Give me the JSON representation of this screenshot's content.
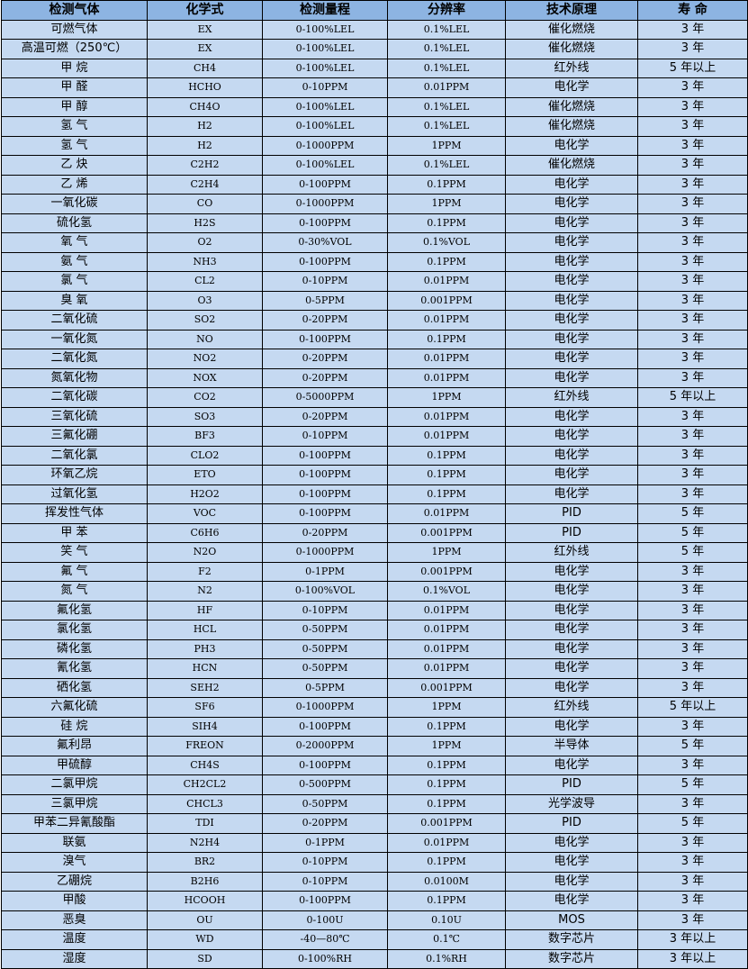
{
  "colors": {
    "header_bg": "#8db4e2",
    "row_bg": "#c5d9f1",
    "border": "#000000"
  },
  "headers": [
    "检测气体",
    "化学式",
    "检测量程",
    "分辨率",
    "技术原理",
    "寿 命"
  ],
  "rows": [
    [
      "可燃气体",
      "EX",
      "0-100%LEL",
      "0.1%LEL",
      "催化燃烧",
      "3 年"
    ],
    [
      "高温可燃（250℃）",
      "EX",
      "0-100%LEL",
      "0.1%LEL",
      "催化燃烧",
      "3 年"
    ],
    [
      "甲 烷",
      "CH4",
      "0-100%LEL",
      "0.1%LEL",
      "红外线",
      "5 年以上"
    ],
    [
      "甲 醛",
      "HCHO",
      "0-10PPM",
      "0.01PPM",
      "电化学",
      "3 年"
    ],
    [
      "甲 醇",
      "CH4O",
      "0-100%LEL",
      "0.1%LEL",
      "催化燃烧",
      "3 年"
    ],
    [
      "氢 气",
      "H2",
      "0-100%LEL",
      "0.1%LEL",
      "催化燃烧",
      "3 年"
    ],
    [
      "氢 气",
      "H2",
      "0-1000PPM",
      "1PPM",
      "电化学",
      "3 年"
    ],
    [
      "乙 炔",
      "C2H2",
      "0-100%LEL",
      "0.1%LEL",
      "催化燃烧",
      "3 年"
    ],
    [
      "乙 烯",
      "C2H4",
      "0-100PPM",
      "0.1PPM",
      "电化学",
      "3 年"
    ],
    [
      "一氧化碳",
      "CO",
      "0-1000PPM",
      "1PPM",
      "电化学",
      "3 年"
    ],
    [
      "硫化氢",
      "H2S",
      "0-100PPM",
      "0.1PPM",
      "电化学",
      "3 年"
    ],
    [
      "氧 气",
      "O2",
      "0-30%VOL",
      "0.1%VOL",
      "电化学",
      "3 年"
    ],
    [
      "氨 气",
      "NH3",
      "0-100PPM",
      "0.1PPM",
      "电化学",
      "3 年"
    ],
    [
      "氯 气",
      "CL2",
      "0-10PPM",
      "0.01PPM",
      "电化学",
      "3 年"
    ],
    [
      "臭 氧",
      "O3",
      "0-5PPM",
      "0.001PPM",
      "电化学",
      "3 年"
    ],
    [
      "二氧化硫",
      "SO2",
      "0-20PPM",
      "0.01PPM",
      "电化学",
      "3 年"
    ],
    [
      "一氧化氮",
      "NO",
      "0-100PPM",
      "0.1PPM",
      "电化学",
      "3 年"
    ],
    [
      "二氧化氮",
      "NO2",
      "0-20PPM",
      "0.01PPM",
      "电化学",
      "3 年"
    ],
    [
      "氮氧化物",
      "NOX",
      "0-20PPM",
      "0.01PPM",
      "电化学",
      "3 年"
    ],
    [
      "二氧化碳",
      "CO2",
      "0-5000PPM",
      "1PPM",
      "红外线",
      "5 年以上"
    ],
    [
      "三氧化硫",
      "SO3",
      "0-20PPM",
      "0.01PPM",
      "电化学",
      "3 年"
    ],
    [
      "三氟化硼",
      "BF3",
      "0-10PPM",
      "0.01PPM",
      "电化学",
      "3 年"
    ],
    [
      "二氧化氯",
      "CLO2",
      "0-100PPM",
      "0.1PPM",
      "电化学",
      "3 年"
    ],
    [
      "环氧乙烷",
      "ETO",
      "0-100PPM",
      "0.1PPM",
      "电化学",
      "3 年"
    ],
    [
      "过氧化氢",
      "H2O2",
      "0-100PPM",
      "0.1PPM",
      "电化学",
      "3 年"
    ],
    [
      "挥发性气体",
      "VOC",
      "0-100PPM",
      "0.01PPM",
      "PID",
      "5 年"
    ],
    [
      "甲 苯",
      "C6H6",
      "0-20PPM",
      "0.001PPM",
      "PID",
      "5 年"
    ],
    [
      "笑 气",
      "N2O",
      "0-1000PPM",
      "1PPM",
      "红外线",
      "5 年"
    ],
    [
      "氟 气",
      "F2",
      "0-1PPM",
      "0.001PPM",
      "电化学",
      "3 年"
    ],
    [
      "氮 气",
      "N2",
      "0-100%VOL",
      "0.1%VOL",
      "电化学",
      "3 年"
    ],
    [
      "氟化氢",
      "HF",
      "0-10PPM",
      "0.01PPM",
      "电化学",
      "3 年"
    ],
    [
      "氯化氢",
      "HCL",
      "0-50PPM",
      "0.01PPM",
      "电化学",
      "3 年"
    ],
    [
      "磷化氢",
      "PH3",
      "0-50PPM",
      "0.01PPM",
      "电化学",
      "3 年"
    ],
    [
      "氰化氢",
      "HCN",
      "0-50PPM",
      "0.01PPM",
      "电化学",
      "3 年"
    ],
    [
      "硒化氢",
      "SEH2",
      "0-5PPM",
      "0.001PPM",
      "电化学",
      "3 年"
    ],
    [
      "六氟化硫",
      "SF6",
      "0-1000PPM",
      "1PPM",
      "红外线",
      "5 年以上"
    ],
    [
      "硅 烷",
      "SIH4",
      "0-100PPM",
      "0.1PPM",
      "电化学",
      "3 年"
    ],
    [
      "氟利昂",
      "FREON",
      "0-2000PPM",
      "1PPM",
      "半导体",
      "5 年"
    ],
    [
      "甲硫醇",
      "CH4S",
      "0-100PPM",
      "0.1PPM",
      "电化学",
      "3 年"
    ],
    [
      "二氯甲烷",
      "CH2CL2",
      "0-500PPM",
      "0.1PPM",
      "PID",
      "5 年"
    ],
    [
      "三氯甲烷",
      "CHCL3",
      "0-50PPM",
      "0.1PPM",
      "光学波导",
      "3 年"
    ],
    [
      "甲苯二异氰酸酯",
      "TDI",
      "0-20PPM",
      "0.001PPM",
      "PID",
      "5 年"
    ],
    [
      "联氨",
      "N2H4",
      "0-1PPM",
      "0.01PPM",
      "电化学",
      "3 年"
    ],
    [
      "溴气",
      "BR2",
      "0-10PPM",
      "0.1PPM",
      "电化学",
      "3 年"
    ],
    [
      "乙硼烷",
      "B2H6",
      "0-10PPM",
      "0.0100M",
      "电化学",
      "3 年"
    ],
    [
      "甲酸",
      "HCOOH",
      "0-100PPM",
      "0.1PPM",
      "电化学",
      "3 年"
    ],
    [
      "恶臭",
      "OU",
      "0-100U",
      "0.10U",
      "MOS",
      "3 年"
    ],
    [
      "温度",
      "WD",
      "-40—80℃",
      "0.1℃",
      "数字芯片",
      "3 年以上"
    ],
    [
      "湿度",
      "SD",
      "0-100%RH",
      "0.1%RH",
      "数字芯片",
      "3 年以上"
    ]
  ]
}
